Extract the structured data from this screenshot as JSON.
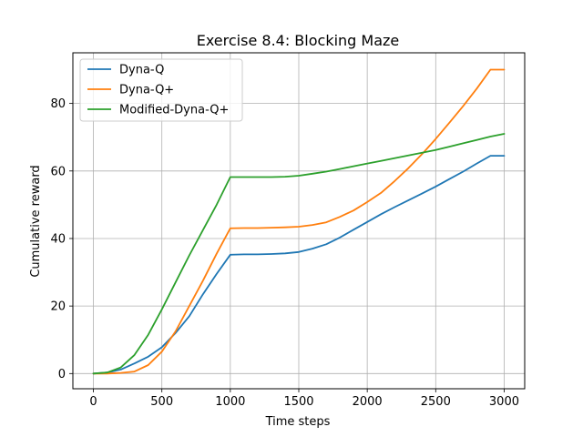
{
  "chart_data": {
    "type": "line",
    "title": "Exercise 8.4: Blocking Maze",
    "xlabel": "Time steps",
    "ylabel": "Cumulative reward",
    "xlim": [
      -150,
      3150
    ],
    "ylim": [
      -4.5,
      95
    ],
    "xticks": [
      0,
      500,
      1000,
      1500,
      2000,
      2500,
      3000
    ],
    "yticks": [
      0,
      20,
      40,
      60,
      80
    ],
    "grid": true,
    "legend": "top-left",
    "series": [
      {
        "name": "Dyna-Q",
        "color": "#1f77b4",
        "x": [
          0,
          100,
          200,
          300,
          400,
          500,
          600,
          700,
          800,
          900,
          1000,
          1100,
          1200,
          1300,
          1400,
          1500,
          1600,
          1700,
          1800,
          1900,
          2000,
          2100,
          2200,
          2300,
          2400,
          2500,
          2600,
          2700,
          2800,
          2900,
          3000
        ],
        "y": [
          0,
          0.3,
          1.2,
          3.0,
          5.0,
          7.8,
          12.0,
          17.0,
          23.5,
          29.5,
          35.2,
          35.3,
          35.3,
          35.4,
          35.6,
          36.0,
          37.0,
          38.3,
          40.3,
          42.6,
          44.9,
          47.2,
          49.3,
          51.3,
          53.3,
          55.4,
          57.6,
          59.8,
          62.2,
          64.5,
          64.5
        ]
      },
      {
        "name": "Dyna-Q+",
        "color": "#ff7f0e",
        "x": [
          0,
          100,
          200,
          300,
          400,
          500,
          600,
          700,
          800,
          900,
          1000,
          1100,
          1200,
          1300,
          1400,
          1500,
          1600,
          1700,
          1800,
          1900,
          2000,
          2100,
          2200,
          2300,
          2400,
          2500,
          2600,
          2700,
          2800,
          2900,
          3000
        ],
        "y": [
          0,
          0,
          0.2,
          0.6,
          2.5,
          6.5,
          12.5,
          20.0,
          27.5,
          35.5,
          43.0,
          43.1,
          43.1,
          43.2,
          43.3,
          43.5,
          44.0,
          44.8,
          46.4,
          48.3,
          50.8,
          53.5,
          57.0,
          60.8,
          65.0,
          69.5,
          74.3,
          79.2,
          84.4,
          90.0,
          90.0
        ]
      },
      {
        "name": "Modified-Dyna-Q+",
        "color": "#2ca02c",
        "x": [
          0,
          100,
          200,
          300,
          400,
          500,
          600,
          700,
          800,
          900,
          1000,
          1100,
          1200,
          1300,
          1400,
          1500,
          1600,
          1700,
          1800,
          1900,
          2000,
          2100,
          2200,
          2300,
          2400,
          2500,
          2600,
          2700,
          2800,
          2900,
          3000
        ],
        "y": [
          0,
          0.3,
          1.8,
          5.5,
          11.5,
          19.0,
          27.0,
          35.0,
          42.5,
          50.0,
          58.2,
          58.2,
          58.2,
          58.2,
          58.3,
          58.6,
          59.2,
          59.8,
          60.6,
          61.4,
          62.2,
          63.0,
          63.8,
          64.6,
          65.4,
          66.2,
          67.2,
          68.2,
          69.2,
          70.2,
          71.0
        ]
      }
    ]
  }
}
